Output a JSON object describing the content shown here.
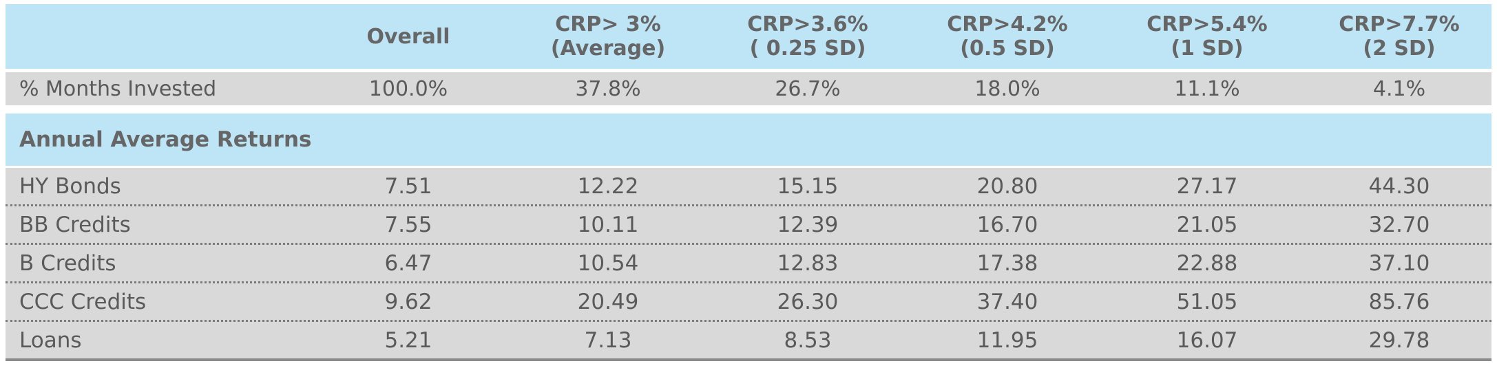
{
  "table": {
    "columns": [
      "",
      "Overall",
      "CRP> 3%\n(Average)",
      "CRP>3.6%\n( 0.25 SD)",
      "CRP>4.2%\n(0.5 SD)",
      "CRP>5.4%\n(1 SD)",
      "CRP>7.7%\n(2 SD)"
    ],
    "header": [
      {
        "l1": "",
        "l2": ""
      },
      {
        "l1": "Overall",
        "l2": ""
      },
      {
        "l1": "CRP> 3%",
        "l2": "(Average)"
      },
      {
        "l1": "CRP>3.6%",
        "l2": "( 0.25 SD)"
      },
      {
        "l1": "CRP>4.2%",
        "l2": "(0.5 SD)"
      },
      {
        "l1": "CRP>5.4%",
        "l2": "(1 SD)"
      },
      {
        "l1": "CRP>7.7%",
        "l2": "(2 SD)"
      }
    ],
    "months_invested": [
      "% Months Invested",
      "100.0%",
      "37.8%",
      "26.7%",
      "18.0%",
      "11.1%",
      "4.1%"
    ],
    "section_title": "Annual Average Returns",
    "rows": [
      [
        "HY Bonds",
        "7.51",
        "12.22",
        "15.15",
        "20.80",
        "27.17",
        "44.30"
      ],
      [
        "BB Credits",
        "7.55",
        "10.11",
        "12.39",
        "16.70",
        "21.05",
        "32.70"
      ],
      [
        "B Credits",
        "6.47",
        "10.54",
        "12.83",
        "17.38",
        "22.88",
        "37.10"
      ],
      [
        "CCC Credits",
        "9.62",
        "20.49",
        "26.30",
        "37.40",
        "51.05",
        "85.76"
      ],
      [
        "Loans",
        "5.21",
        "7.13",
        "8.53",
        "11.95",
        "16.07",
        "29.78"
      ]
    ]
  },
  "colors": {
    "header_bg": "#bde5f6",
    "row_bg": "#dad9d9",
    "text": "#5a5a5a"
  }
}
